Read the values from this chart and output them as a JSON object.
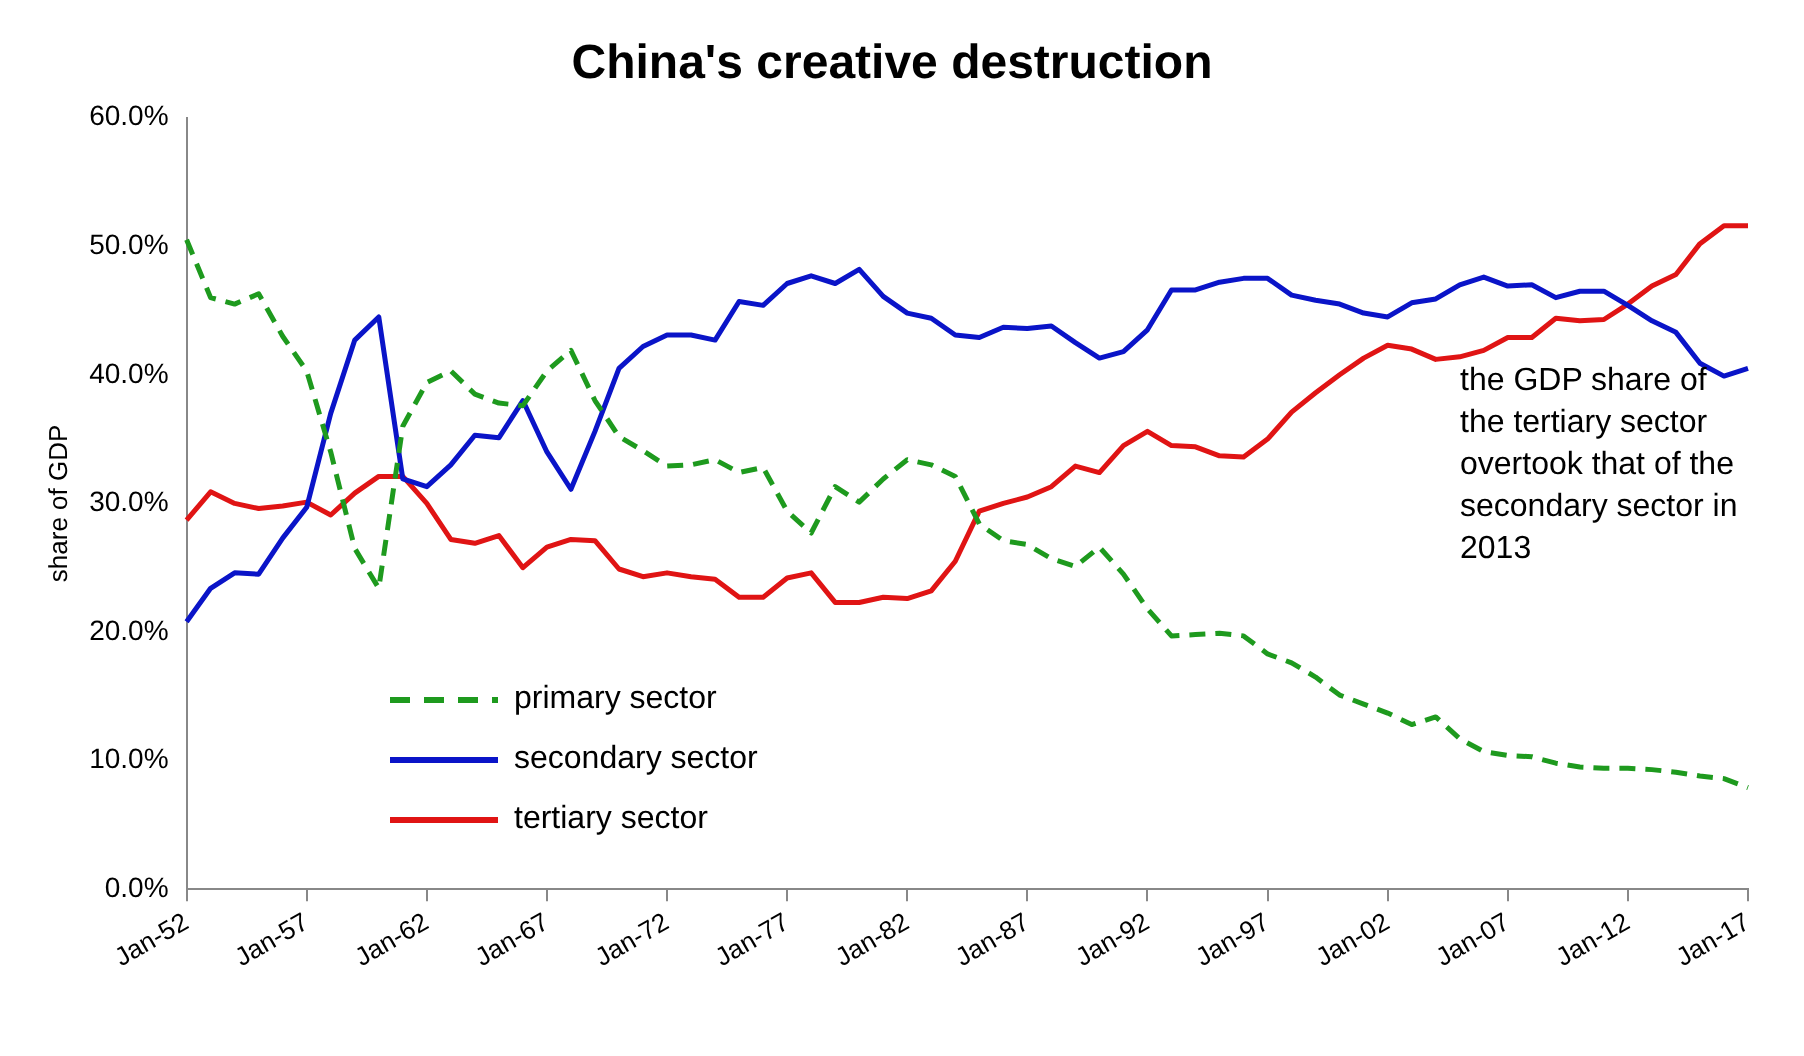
{
  "chart_data": {
    "type": "line",
    "title": "China's creative destruction",
    "ylabel": "share of GDP",
    "categories": [
      "Jan-52",
      null,
      null,
      null,
      null,
      "Jan-57",
      null,
      null,
      null,
      null,
      "Jan-62",
      null,
      null,
      null,
      null,
      "Jan-67",
      null,
      null,
      null,
      null,
      "Jan-72",
      null,
      null,
      null,
      null,
      "Jan-77",
      null,
      null,
      null,
      null,
      "Jan-82",
      null,
      null,
      null,
      null,
      "Jan-87",
      null,
      null,
      null,
      null,
      "Jan-92",
      null,
      null,
      null,
      null,
      "Jan-97",
      null,
      null,
      null,
      null,
      "Jan-02",
      null,
      null,
      null,
      null,
      "Jan-07",
      null,
      null,
      null,
      null,
      "Jan-12",
      null,
      null,
      null,
      null,
      "Jan-17"
    ],
    "series": [
      {
        "name": "primary sector",
        "color": "#1e9a1e",
        "line_style": "dashed",
        "values": [
          50.5,
          46,
          45.5,
          46.3,
          43,
          40.3,
          34,
          26.5,
          23.4,
          36,
          39.4,
          40.3,
          38.5,
          37.8,
          37.6,
          40.3,
          41.9,
          38,
          35.2,
          34.1,
          32.9,
          33,
          33.4,
          32.4,
          32.8,
          29.4,
          27.7,
          31.3,
          30.1,
          31.9,
          33.4,
          33,
          32.1,
          28.4,
          27.1,
          26.8,
          25.7,
          25.1,
          26.6,
          24.5,
          21.8,
          19.7,
          19.8,
          19.9,
          19.7,
          18.3,
          17.6,
          16.5,
          15.1,
          14.4,
          13.7,
          12.8,
          13.4,
          11.7,
          10.7,
          10.4,
          10.3,
          9.8,
          9.5,
          9.4,
          9.4,
          9.3,
          9.1,
          8.8,
          8.6,
          7.9
        ]
      },
      {
        "name": "secondary sector",
        "color": "#0a14c8",
        "line_style": "solid",
        "values": [
          20.8,
          23.4,
          24.6,
          24.5,
          27.3,
          29.7,
          37,
          42.7,
          44.5,
          31.9,
          31.3,
          33,
          35.3,
          35.1,
          38,
          34,
          31.1,
          35.6,
          40.5,
          42.2,
          43.1,
          43.1,
          42.7,
          45.7,
          45.4,
          47.1,
          47.7,
          47.1,
          48.2,
          46.1,
          44.8,
          44.4,
          43.1,
          42.9,
          43.7,
          43.6,
          43.8,
          42.5,
          41.3,
          41.8,
          43.5,
          46.6,
          46.6,
          47.2,
          47.5,
          47.5,
          46.2,
          45.8,
          45.5,
          44.8,
          44.5,
          45.6,
          45.9,
          47,
          47.6,
          46.9,
          47,
          46,
          46.5,
          46.5,
          45.4,
          44.2,
          43.3,
          40.9,
          39.9,
          40.5
        ]
      },
      {
        "name": "tertiary sector",
        "color": "#e01414",
        "line_style": "solid",
        "values": [
          28.7,
          30.9,
          30,
          29.6,
          29.8,
          30.1,
          29.1,
          30.8,
          32.1,
          32.1,
          30,
          27.2,
          26.9,
          27.5,
          25,
          26.6,
          27.2,
          27.1,
          24.9,
          24.3,
          24.6,
          24.3,
          24.1,
          22.7,
          22.7,
          24.2,
          24.6,
          22.3,
          22.3,
          22.7,
          22.6,
          23.2,
          25.5,
          29.4,
          30,
          30.5,
          31.3,
          32.9,
          32.4,
          34.5,
          35.6,
          34.5,
          34.4,
          33.7,
          33.6,
          35,
          37.1,
          38.6,
          40,
          41.3,
          42.3,
          42,
          41.2,
          41.4,
          41.9,
          42.9,
          42.9,
          44.4,
          44.2,
          44.3,
          45.5,
          46.9,
          47.8,
          50.2,
          51.6,
          51.6
        ]
      }
    ],
    "ylim": [
      0,
      60
    ],
    "yticks": [
      {
        "value": 0,
        "label": "0.0%"
      },
      {
        "value": 10,
        "label": "10.0%"
      },
      {
        "value": 20,
        "label": "20.0%"
      },
      {
        "value": 30,
        "label": "30.0%"
      },
      {
        "value": 40,
        "label": "40.0%"
      },
      {
        "value": 50,
        "label": "50.0%"
      },
      {
        "value": 60,
        "label": "60.0%"
      }
    ],
    "grid": false,
    "legend": "bottom left",
    "marker": "none",
    "annotations": [
      "the GDP share of the tertiary sector overtook that of the secondary sector in 2013"
    ]
  }
}
